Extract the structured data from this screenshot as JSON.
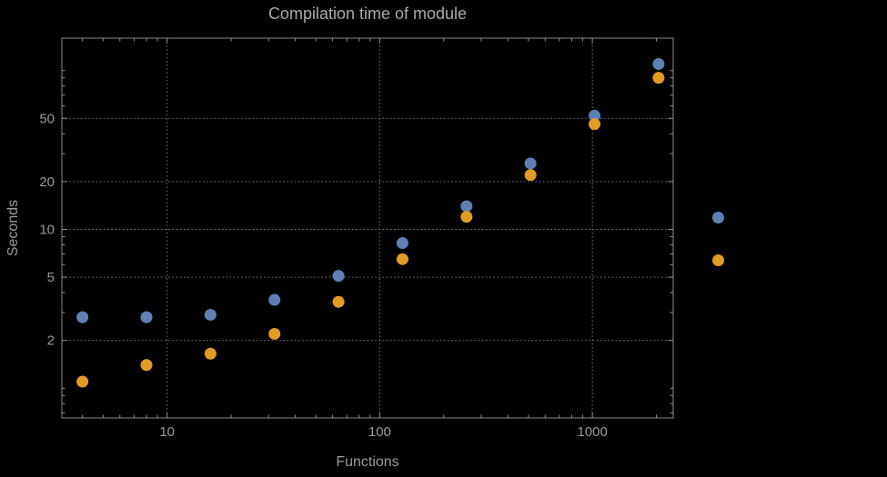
{
  "title": "Compilation time of module",
  "xlabel": "Functions",
  "ylabel": "Seconds",
  "colors": {
    "background": "#000000",
    "text": "#9b9b9b",
    "title_text": "#a9a9a9",
    "grid": "#6f6f6f",
    "frame": "#8a8a8a",
    "series1": "#5e81b5",
    "series2": "#e19c24"
  },
  "chart_data": {
    "type": "scatter",
    "x_scale": "log",
    "y_scale": "log",
    "title": "Compilation time of module",
    "xlabel": "Functions",
    "ylabel": "Seconds",
    "x": [
      4,
      8,
      16,
      32,
      64,
      128,
      256,
      512,
      1024,
      2048
    ],
    "series": [
      {
        "name": "series-1-blue",
        "color": "#5e81b5",
        "values": [
          2.8,
          2.8,
          2.9,
          3.6,
          5.1,
          8.2,
          14,
          26,
          52,
          110
        ]
      },
      {
        "name": "series-2-orange",
        "color": "#e19c24",
        "values": [
          1.1,
          1.4,
          1.65,
          2.2,
          3.5,
          6.5,
          12,
          22,
          46,
          90
        ]
      }
    ],
    "x_ticks": [
      10,
      100,
      1000
    ],
    "y_ticks": [
      2,
      5,
      10,
      20,
      50
    ],
    "x_range": [
      3.2,
      2400
    ],
    "y_range": [
      0.65,
      160
    ],
    "grid": "dotted",
    "legend_position": "right-outside",
    "legend_markers": [
      "series-1-blue",
      "series-2-orange"
    ]
  }
}
